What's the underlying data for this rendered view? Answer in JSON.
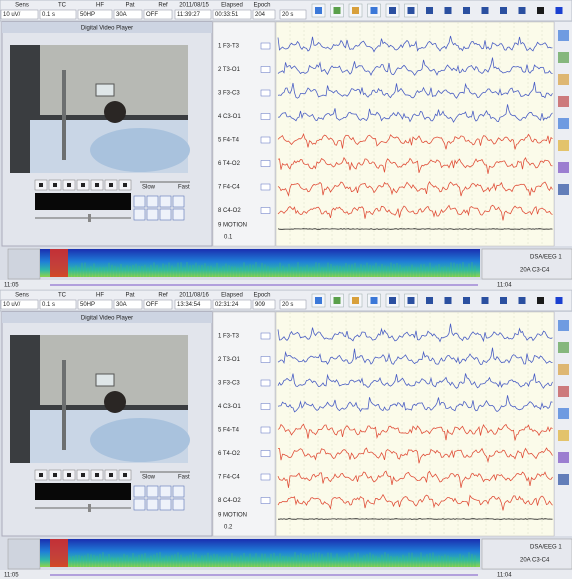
{
  "panels": [
    {
      "toolbar": {
        "labels": [
          "Sens",
          "TC",
          "HF",
          "Pat",
          "Ref",
          "2011/08/15",
          "Elapsed",
          "Epoch"
        ],
        "values": [
          "10 uV/",
          "0.1 s",
          "50HP",
          "30A",
          "OFF",
          "11:39:27",
          "00:33:51",
          "204",
          "20 s"
        ]
      },
      "player": {
        "title": "Digital Video Player",
        "slow": "Slow",
        "fast": "Fast"
      },
      "channels": [
        "1 F3-T3",
        "2 T3-O1",
        "3 F3-C3",
        "4 C3-O1",
        "5 F4-T4",
        "6 T4-O2",
        "7 F4-C4",
        "8 C4-O2",
        "9 MOTION"
      ],
      "motion_value": "0.1",
      "dsa": {
        "label": "DSA/EEG 1",
        "channel": "20A C3-C4"
      },
      "status": {
        "left": "11:05",
        "right": "11:04"
      }
    },
    {
      "toolbar": {
        "labels": [
          "Sens",
          "TC",
          "HF",
          "Pat",
          "Ref",
          "2011/08/16",
          "Elapsed",
          "Epoch"
        ],
        "values": [
          "10 uV/",
          "0.1 s",
          "50HP",
          "30A",
          "OFF",
          "13:34:54",
          "02:31:24",
          "909",
          "20 s"
        ]
      },
      "player": {
        "title": "Digital Video Player",
        "slow": "Slow",
        "fast": "Fast"
      },
      "channels": [
        "1 F3-T3",
        "2 T3-O1",
        "3 F3-C3",
        "4 C3-O1",
        "5 F4-T4",
        "6 T4-O2",
        "7 F4-C4",
        "8 C4-O2",
        "9 MOTION"
      ],
      "motion_value": "0.2",
      "dsa": {
        "label": "DSA/EEG 1",
        "channel": "20A C3-C4"
      },
      "status": {
        "left": "11:05",
        "right": "11:04"
      }
    }
  ]
}
